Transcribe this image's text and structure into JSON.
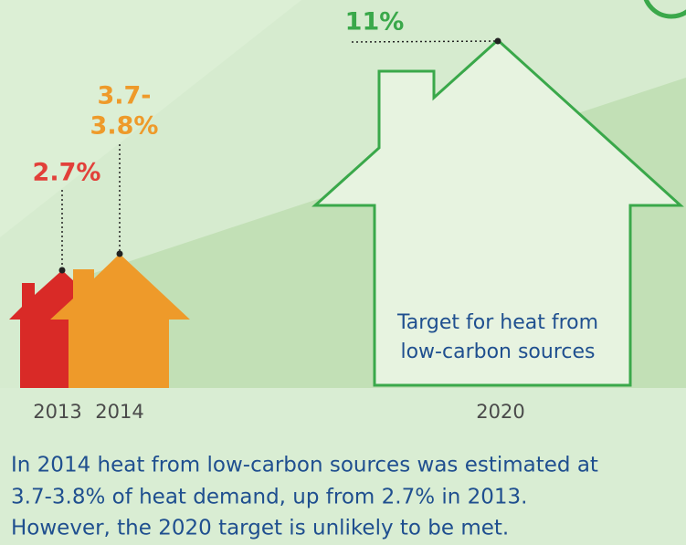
{
  "houses": [
    {
      "label": [
        "2.7%"
      ],
      "year": "2013"
    },
    {
      "label": [
        "3.7-",
        "3.8%"
      ],
      "year": "2014"
    },
    {
      "label": [
        "11%"
      ],
      "year": "2020",
      "text": [
        "Target for heat from",
        "low-carbon sources"
      ]
    }
  ],
  "caption": [
    "In 2014 heat from low-carbon sources was estimated at",
    "3.7-3.8% of heat demand, up from 2.7% in 2013.",
    "However, the 2020 target is unlikely to be met."
  ]
}
